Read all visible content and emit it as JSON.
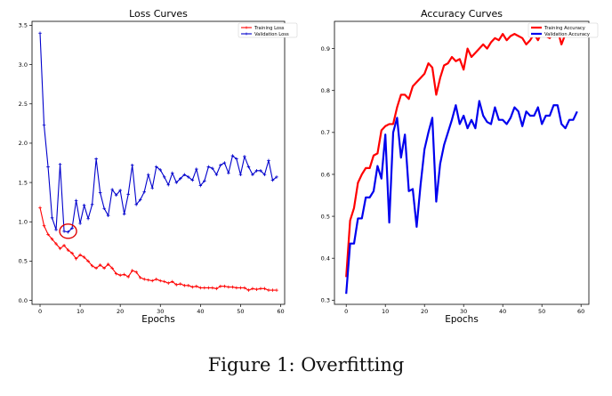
{
  "caption": "Figure 1: Overfitting",
  "chart_data": [
    {
      "type": "line",
      "title": "Loss Curves",
      "xlabel": "Epochs",
      "ylabel": "",
      "xlim": [
        -2,
        61
      ],
      "ylim": [
        -0.05,
        3.55
      ],
      "xticks": [
        0,
        10,
        20,
        30,
        40,
        50,
        60
      ],
      "yticks": [
        0.0,
        0.5,
        1.0,
        1.5,
        2.0,
        2.5,
        3.0,
        3.5
      ],
      "legend": "top-right",
      "grid": false,
      "annotation": "red circle around validation loss minimum near epoch 7",
      "circle_at": [
        7,
        0.88
      ],
      "series": [
        {
          "name": "Training Loss",
          "color": "#ff0000",
          "marker": "plus",
          "x": [
            0,
            1,
            2,
            3,
            4,
            5,
            6,
            7,
            8,
            9,
            10,
            11,
            12,
            13,
            14,
            15,
            16,
            17,
            18,
            19,
            20,
            21,
            22,
            23,
            24,
            25,
            26,
            27,
            28,
            29,
            30,
            31,
            32,
            33,
            34,
            35,
            36,
            37,
            38,
            39,
            40,
            41,
            42,
            43,
            44,
            45,
            46,
            47,
            48,
            49,
            50,
            51,
            52,
            53,
            54,
            55,
            56,
            57,
            58,
            59
          ],
          "values": [
            1.18,
            0.95,
            0.84,
            0.78,
            0.72,
            0.66,
            0.7,
            0.64,
            0.6,
            0.53,
            0.58,
            0.55,
            0.5,
            0.44,
            0.41,
            0.45,
            0.41,
            0.46,
            0.41,
            0.34,
            0.32,
            0.33,
            0.3,
            0.38,
            0.36,
            0.29,
            0.27,
            0.26,
            0.25,
            0.27,
            0.25,
            0.24,
            0.22,
            0.24,
            0.2,
            0.21,
            0.19,
            0.19,
            0.17,
            0.18,
            0.16,
            0.16,
            0.16,
            0.16,
            0.15,
            0.18,
            0.18,
            0.17,
            0.17,
            0.16,
            0.16,
            0.16,
            0.13,
            0.15,
            0.14,
            0.15,
            0.15,
            0.13,
            0.13,
            0.13
          ]
        },
        {
          "name": "Validation Loss",
          "color": "#0000cc",
          "marker": "plus",
          "x": [
            0,
            1,
            2,
            3,
            4,
            5,
            6,
            7,
            8,
            9,
            10,
            11,
            12,
            13,
            14,
            15,
            16,
            17,
            18,
            19,
            20,
            21,
            22,
            23,
            24,
            25,
            26,
            27,
            28,
            29,
            30,
            31,
            32,
            33,
            34,
            35,
            36,
            37,
            38,
            39,
            40,
            41,
            42,
            43,
            44,
            45,
            46,
            47,
            48,
            49,
            50,
            51,
            52,
            53,
            54,
            55,
            56,
            57,
            58,
            59
          ],
          "values": [
            3.4,
            2.23,
            1.7,
            1.05,
            0.9,
            1.73,
            0.88,
            0.87,
            0.92,
            1.27,
            0.98,
            1.21,
            1.04,
            1.22,
            1.8,
            1.37,
            1.17,
            1.08,
            1.41,
            1.34,
            1.4,
            1.1,
            1.35,
            1.72,
            1.22,
            1.28,
            1.38,
            1.6,
            1.43,
            1.7,
            1.66,
            1.57,
            1.47,
            1.62,
            1.5,
            1.55,
            1.6,
            1.57,
            1.53,
            1.67,
            1.46,
            1.52,
            1.7,
            1.68,
            1.6,
            1.72,
            1.75,
            1.62,
            1.84,
            1.8,
            1.6,
            1.83,
            1.7,
            1.6,
            1.65,
            1.65,
            1.6,
            1.78,
            1.53,
            1.57
          ]
        }
      ]
    },
    {
      "type": "line",
      "title": "Accuracy Curves",
      "xlabel": "Epochs",
      "ylabel": "",
      "xlim": [
        -3,
        62
      ],
      "ylim": [
        0.29,
        0.965
      ],
      "xticks": [
        0,
        10,
        20,
        30,
        40,
        50,
        60
      ],
      "yticks": [
        0.3,
        0.4,
        0.5,
        0.6,
        0.7,
        0.8,
        0.9
      ],
      "legend": "top-right",
      "grid": false,
      "series": [
        {
          "name": "Training Accuracy",
          "color": "#ff0000",
          "x": [
            0,
            1,
            2,
            3,
            4,
            5,
            6,
            7,
            8,
            9,
            10,
            11,
            12,
            13,
            14,
            15,
            16,
            17,
            18,
            19,
            20,
            21,
            22,
            23,
            24,
            25,
            26,
            27,
            28,
            29,
            30,
            31,
            32,
            33,
            34,
            35,
            36,
            37,
            38,
            39,
            40,
            41,
            42,
            43,
            44,
            45,
            46,
            47,
            48,
            49,
            50,
            51,
            52,
            53,
            54,
            55,
            56,
            57,
            58,
            59
          ],
          "values": [
            0.355,
            0.49,
            0.52,
            0.58,
            0.6,
            0.615,
            0.615,
            0.645,
            0.65,
            0.705,
            0.715,
            0.72,
            0.72,
            0.76,
            0.79,
            0.79,
            0.78,
            0.81,
            0.82,
            0.83,
            0.84,
            0.865,
            0.855,
            0.79,
            0.83,
            0.86,
            0.865,
            0.88,
            0.87,
            0.875,
            0.85,
            0.9,
            0.88,
            0.89,
            0.9,
            0.91,
            0.9,
            0.915,
            0.925,
            0.92,
            0.935,
            0.92,
            0.93,
            0.935,
            0.93,
            0.925,
            0.91,
            0.92,
            0.935,
            0.92,
            0.94,
            0.93,
            0.925,
            0.94,
            0.945,
            0.91,
            0.935,
            0.94,
            0.945,
            0.95
          ]
        },
        {
          "name": "Validation Accuracy",
          "color": "#0000ee",
          "x": [
            0,
            1,
            2,
            3,
            4,
            5,
            6,
            7,
            8,
            9,
            10,
            11,
            12,
            13,
            14,
            15,
            16,
            17,
            18,
            19,
            20,
            21,
            22,
            23,
            24,
            25,
            26,
            27,
            28,
            29,
            30,
            31,
            32,
            33,
            34,
            35,
            36,
            37,
            38,
            39,
            40,
            41,
            42,
            43,
            44,
            45,
            46,
            47,
            48,
            49,
            50,
            51,
            52,
            53,
            54,
            55,
            56,
            57,
            58,
            59
          ],
          "values": [
            0.315,
            0.435,
            0.435,
            0.495,
            0.495,
            0.545,
            0.545,
            0.56,
            0.62,
            0.59,
            0.695,
            0.485,
            0.7,
            0.735,
            0.64,
            0.695,
            0.56,
            0.565,
            0.475,
            0.575,
            0.66,
            0.7,
            0.735,
            0.535,
            0.625,
            0.67,
            0.7,
            0.73,
            0.765,
            0.72,
            0.74,
            0.71,
            0.73,
            0.71,
            0.775,
            0.74,
            0.725,
            0.72,
            0.76,
            0.73,
            0.73,
            0.72,
            0.735,
            0.76,
            0.75,
            0.715,
            0.75,
            0.74,
            0.74,
            0.76,
            0.72,
            0.74,
            0.74,
            0.765,
            0.765,
            0.72,
            0.71,
            0.73,
            0.73,
            0.75
          ]
        }
      ]
    }
  ]
}
